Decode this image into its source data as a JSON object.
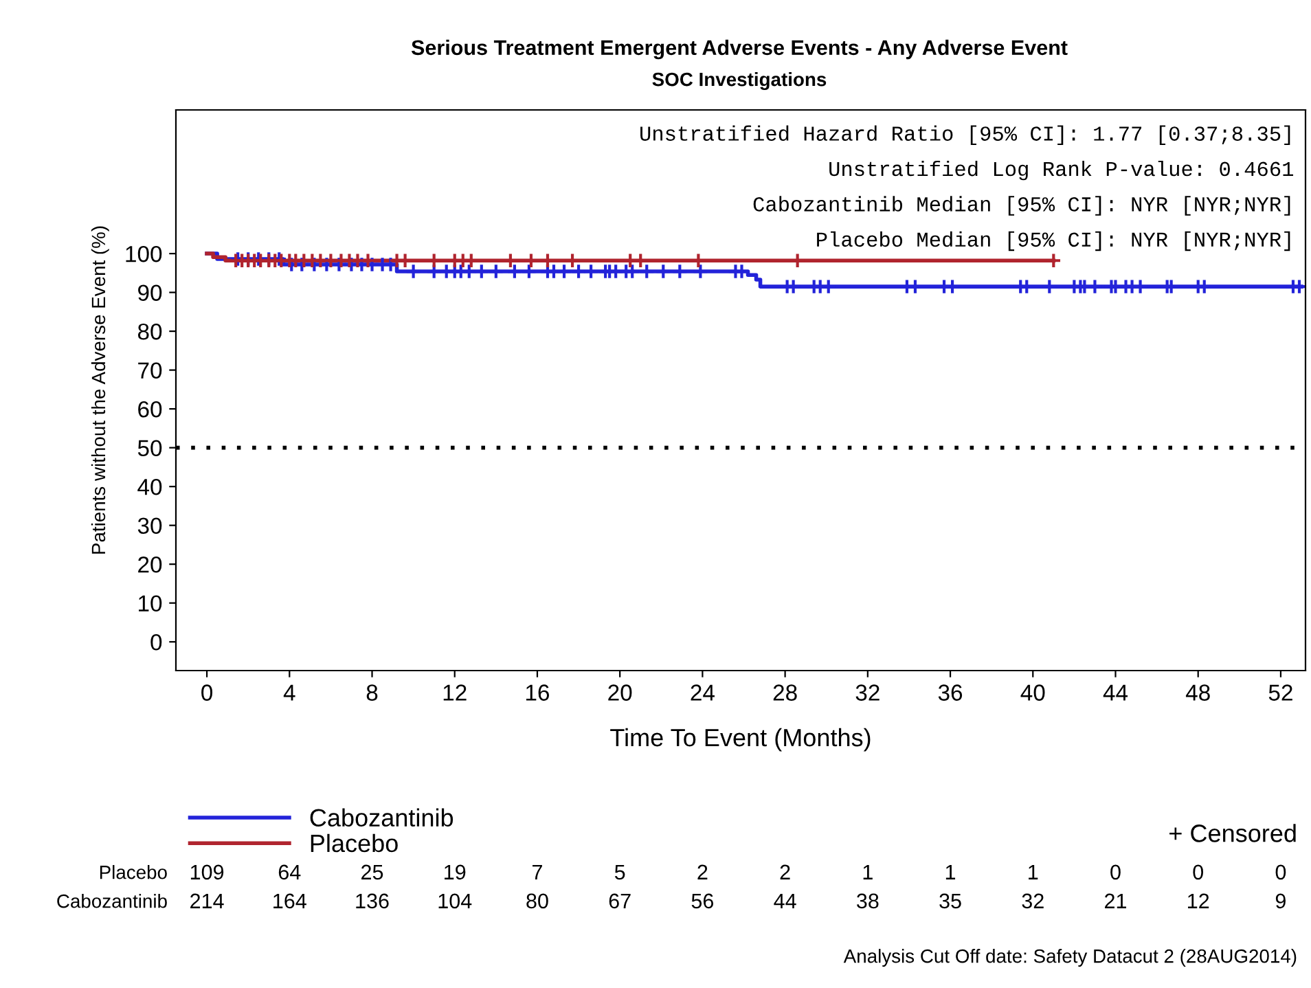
{
  "chart_data": {
    "type": "step",
    "title": "Serious Treatment Emergent Adverse Events - Any Adverse Event",
    "subtitle": "SOC Investigations",
    "xlabel": "Time To Event (Months)",
    "ylabel": "Patients without the Adverse Event (%)",
    "xlim": [
      -1.5,
      53.2
    ],
    "ylim": [
      -7.4,
      137
    ],
    "xticks": [
      0,
      4,
      8,
      12,
      16,
      20,
      24,
      28,
      32,
      36,
      40,
      44,
      48,
      52
    ],
    "yticks": [
      0,
      10,
      20,
      30,
      40,
      50,
      60,
      70,
      80,
      90,
      100
    ],
    "grid": false,
    "legend": "bottom",
    "series": [
      {
        "name": "Cabozantinib",
        "color": "#2323d9",
        "x": [
          0,
          0.5,
          3.7,
          9.2,
          26.2,
          26.6,
          26.8,
          53.0
        ],
        "values": [
          100,
          98.6,
          97.2,
          95.4,
          94.5,
          93.3,
          91.5,
          91.5
        ]
      },
      {
        "name": "Placebo",
        "color": "#b0242e",
        "x": [
          0,
          0.3,
          0.9,
          41.0
        ],
        "values": [
          100,
          99.1,
          98.2,
          98.2
        ]
      },
      {
        "color": "#2323d9",
        "type": "scatter",
        "marker": "cross",
        "x": [
          1.5,
          2.0,
          2.5,
          3.0,
          3.5,
          4.1,
          4.6,
          5.2,
          5.8,
          6.4,
          7.0,
          7.5,
          8.0,
          8.5,
          8.9,
          10.0,
          11.0,
          11.6,
          12.0,
          12.3,
          12.7,
          13.3,
          14.0,
          14.9,
          15.6,
          16.5,
          16.8,
          17.3,
          18.0,
          18.6,
          19.3,
          19.5,
          19.8,
          20.3,
          20.6,
          21.3,
          22.1,
          22.9,
          23.9,
          25.6,
          25.9,
          28.1,
          28.4,
          29.4,
          29.7,
          30.1,
          33.9,
          34.3,
          35.7,
          36.1,
          39.4,
          39.7,
          40.8,
          42.0,
          42.3,
          42.5,
          43.0,
          43.8,
          44.0,
          44.5,
          44.8,
          45.2,
          46.5,
          46.7,
          48.0,
          48.3,
          52.6,
          52.9
        ],
        "values": [
          98.6,
          98.6,
          98.6,
          98.6,
          98.6,
          97.2,
          97.2,
          97.2,
          97.2,
          97.2,
          97.2,
          97.2,
          97.2,
          97.2,
          97.2,
          95.4,
          95.4,
          95.4,
          95.4,
          95.4,
          95.4,
          95.4,
          95.4,
          95.4,
          95.4,
          95.4,
          95.4,
          95.4,
          95.4,
          95.4,
          95.4,
          95.4,
          95.4,
          95.4,
          95.4,
          95.4,
          95.4,
          95.4,
          95.4,
          95.4,
          95.4,
          91.5,
          91.5,
          91.5,
          91.5,
          91.5,
          91.5,
          91.5,
          91.5,
          91.5,
          91.5,
          91.5,
          91.5,
          91.5,
          91.5,
          91.5,
          91.5,
          91.5,
          91.5,
          91.5,
          91.5,
          91.5,
          91.5,
          91.5,
          91.5,
          91.5,
          91.5,
          91.5
        ]
      },
      {
        "color": "#b0242e",
        "type": "scatter",
        "marker": "cross",
        "x": [
          1.4,
          1.7,
          2.0,
          2.3,
          2.6,
          3.0,
          3.3,
          3.6,
          4.0,
          4.3,
          4.7,
          5.1,
          5.5,
          6.0,
          6.5,
          6.9,
          7.3,
          7.8,
          9.2,
          9.6,
          11.0,
          12.0,
          12.4,
          12.8,
          14.7,
          15.7,
          16.5,
          17.7,
          20.5,
          21.0,
          23.8,
          28.6,
          41.0
        ],
        "values": [
          98.2,
          98.2,
          98.2,
          98.2,
          98.2,
          98.2,
          98.2,
          98.2,
          98.2,
          98.2,
          98.2,
          98.2,
          98.2,
          98.2,
          98.2,
          98.2,
          98.2,
          98.2,
          98.2,
          98.2,
          98.2,
          98.2,
          98.2,
          98.2,
          98.2,
          98.2,
          98.2,
          98.2,
          98.2,
          98.2,
          98.2,
          98.2,
          98.2
        ]
      }
    ],
    "ref_lines": [
      {
        "axis": "y",
        "value": 50,
        "color": "#000000",
        "line_style": "dotted"
      }
    ],
    "annotations": [
      "Unstratified Hazard Ratio [95% CI]: 1.77 [0.37;8.35]",
      "Unstratified Log Rank P-value: 0.4661",
      "Cabozantinib Median [95% CI]: NYR [NYR;NYR]",
      "Placebo Median [95% CI]: NYR [NYR;NYR]",
      "+ Censored",
      "Placebo 109 64 25 19 7 5 2 2 1 1 1 0 0 0",
      "Cabozantinib 214 164 136 104 80 67 56 44 38 35 32 21 12 9",
      "Analysis Cut Off date: Safety Datacut 2 (28AUG2014)"
    ]
  }
}
